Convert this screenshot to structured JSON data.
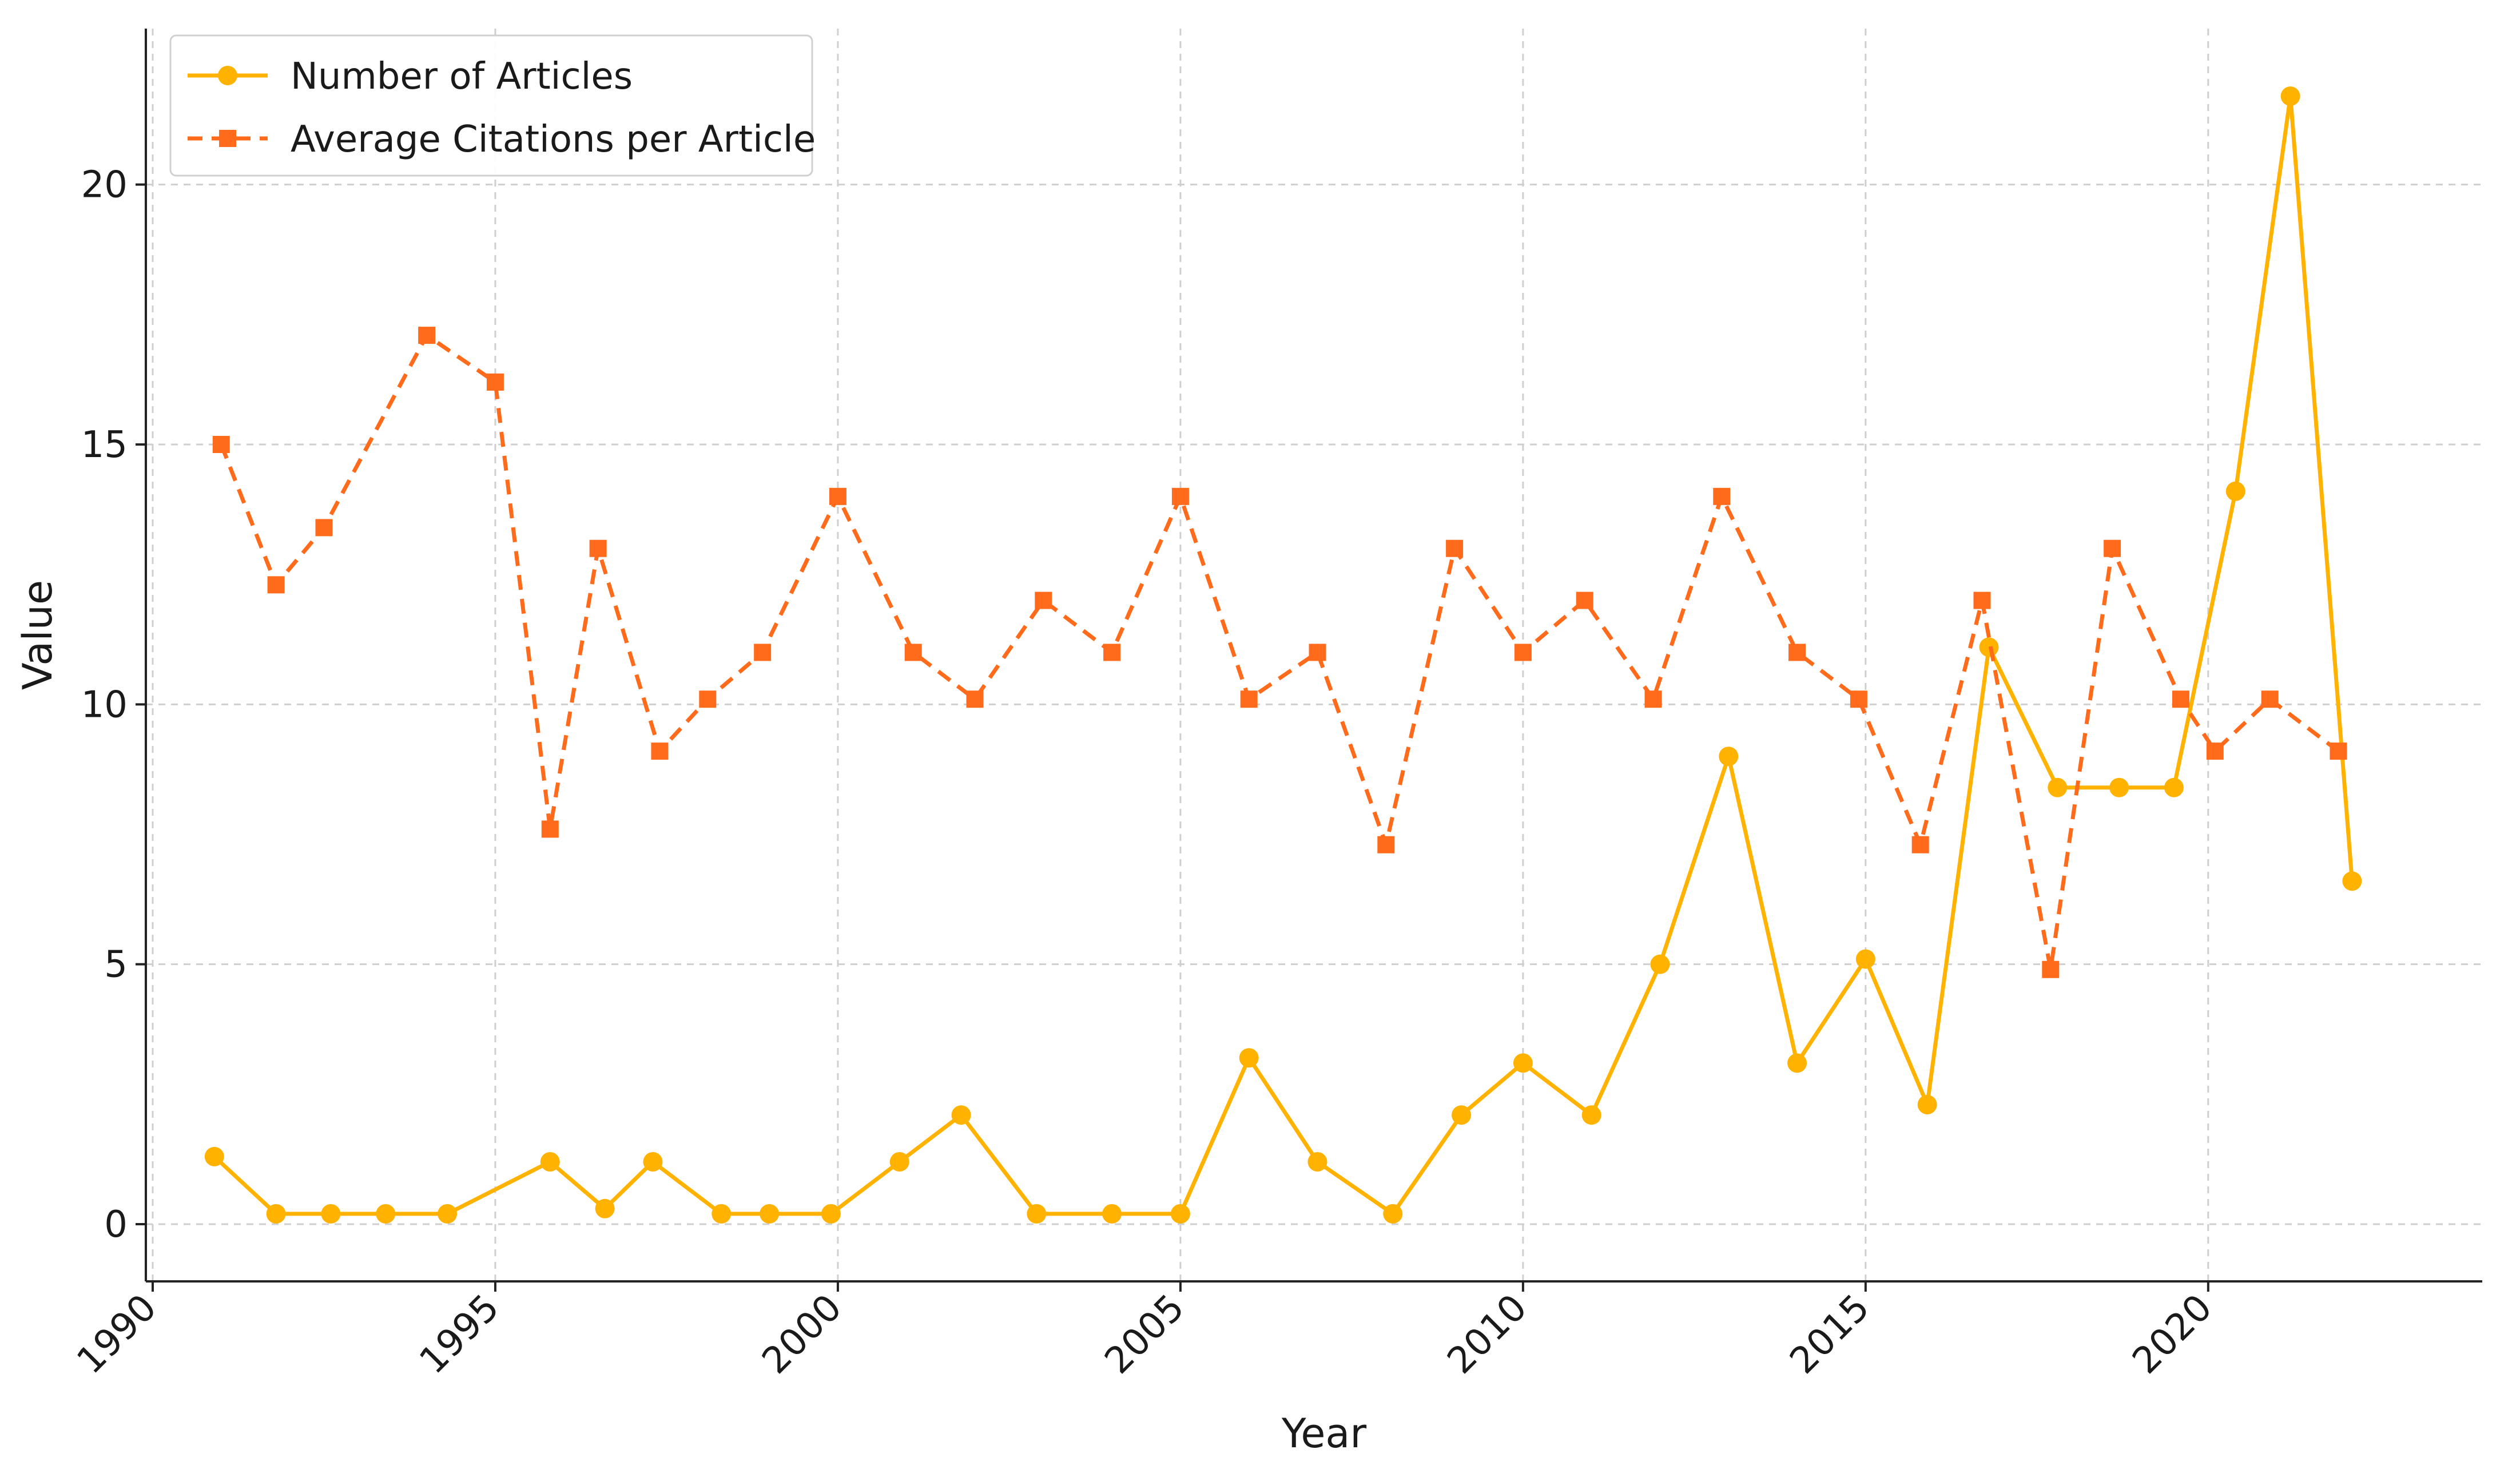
{
  "chart_data": {
    "type": "line",
    "title": "",
    "xlabel": "Year",
    "ylabel": "Value",
    "xlim": [
      1989.9,
      2024.0
    ],
    "ylim": [
      -1.1,
      23.0
    ],
    "xticks": [
      1990,
      1995,
      2000,
      2005,
      2010,
      2015,
      2020
    ],
    "yticks": [
      0,
      5,
      10,
      15,
      20
    ],
    "grid": true,
    "legend_position": "top-left",
    "series": [
      {
        "name": "Number of Articles",
        "color": "#FFB300",
        "line_style": "solid",
        "marker": "circle",
        "x": [
          1990.9,
          1991.8,
          1992.6,
          1993.4,
          1994.3,
          1995.8,
          1996.6,
          1997.3,
          1998.3,
          1999.0,
          1999.9,
          2000.9,
          2001.8,
          2002.9,
          2004.0,
          2005.0,
          2006.0,
          2007.0,
          2008.1,
          2009.1,
          2010.0,
          2011.0,
          2012.0,
          2013.0,
          2014.0,
          2015.0,
          2015.9,
          2016.8,
          2017.8,
          2018.7,
          2019.5,
          2020.4,
          2021.2,
          2022.1
        ],
        "values": [
          1.3,
          0.2,
          0.2,
          0.2,
          0.2,
          1.2,
          0.3,
          1.2,
          0.2,
          0.2,
          0.2,
          1.2,
          2.1,
          0.2,
          0.2,
          0.2,
          3.2,
          1.2,
          0.2,
          2.1,
          3.1,
          2.1,
          5.0,
          9.0,
          3.1,
          5.1,
          2.3,
          11.1,
          8.4,
          8.4,
          8.4,
          14.1,
          21.7,
          6.6
        ]
      },
      {
        "name": "Average Citations per Article",
        "color": "#FF6B1A",
        "line_style": "dashed",
        "marker": "square",
        "x": [
          1991.0,
          1991.8,
          1992.5,
          1994.0,
          1995.0,
          1995.8,
          1996.5,
          1997.4,
          1998.1,
          1998.9,
          2000.0,
          2001.1,
          2002.0,
          2003.0,
          2004.0,
          2005.0,
          2006.0,
          2007.0,
          2008.0,
          2009.0,
          2010.0,
          2010.9,
          2011.9,
          2012.9,
          2014.0,
          2014.9,
          2015.8,
          2016.7,
          2017.7,
          2018.6,
          2019.6,
          2020.1,
          2020.9,
          2021.9
        ],
        "values": [
          15.0,
          12.3,
          13.4,
          17.1,
          16.2,
          7.6,
          13.0,
          9.1,
          10.1,
          11.0,
          14.0,
          11.0,
          10.1,
          12.0,
          11.0,
          14.0,
          10.1,
          11.0,
          7.3,
          13.0,
          11.0,
          12.0,
          10.1,
          14.0,
          11.0,
          10.1,
          7.3,
          12.0,
          4.9,
          13.0,
          10.1,
          9.1,
          10.1,
          9.1
        ]
      }
    ]
  }
}
